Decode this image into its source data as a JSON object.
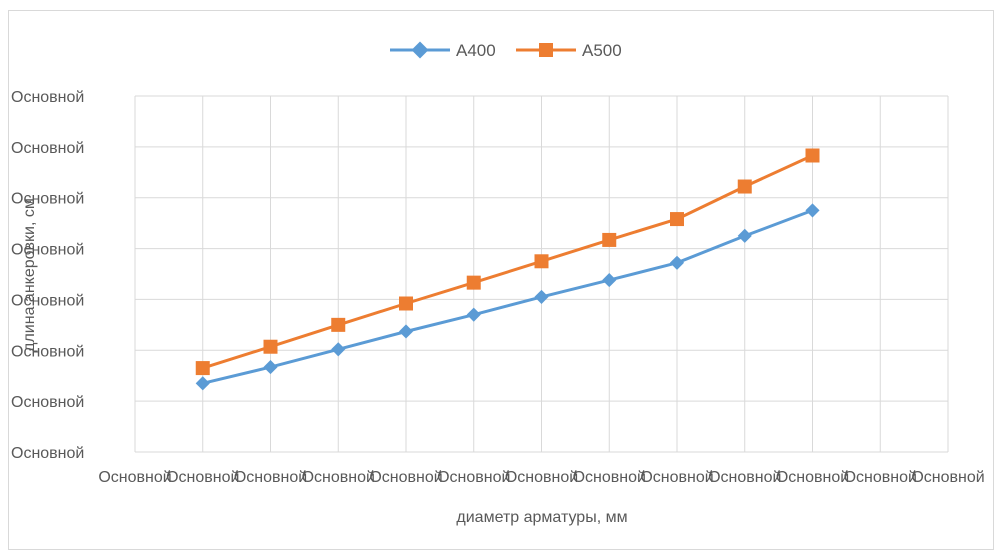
{
  "chart_data": {
    "type": "line",
    "title": "",
    "xlabel": "диаметр арматуры, мм",
    "ylabel": "длина анкеровки, см",
    "x_tick_labels": [
      "Основной",
      "Основной",
      "Основной",
      "Основной",
      "Основной",
      "Основной",
      "Основной",
      "Основной",
      "Основной",
      "Основной",
      "Основной",
      "Основной",
      "Основной"
    ],
    "y_tick_labels": [
      "Основной",
      "Основной",
      "Основной",
      "Основной",
      "Основной",
      "Основной",
      "Основной",
      "Основной"
    ],
    "xlim": [
      0,
      12
    ],
    "ylim": [
      0,
      7
    ],
    "grid": true,
    "legend_position": "top",
    "series": [
      {
        "name": "А400",
        "color": "#5b9bd5",
        "marker": "diamond",
        "x": [
          1,
          2,
          3,
          4,
          5,
          6,
          7,
          8,
          9,
          10
        ],
        "y": [
          1.35,
          1.67,
          2.02,
          2.37,
          2.7,
          3.05,
          3.38,
          3.72,
          4.25,
          4.75
        ]
      },
      {
        "name": "А500",
        "color": "#ed7d31",
        "marker": "square",
        "x": [
          1,
          2,
          3,
          4,
          5,
          6,
          7,
          8,
          9,
          10
        ],
        "y": [
          1.65,
          2.07,
          2.5,
          2.92,
          3.33,
          3.75,
          4.17,
          4.58,
          5.22,
          5.83
        ]
      }
    ]
  }
}
